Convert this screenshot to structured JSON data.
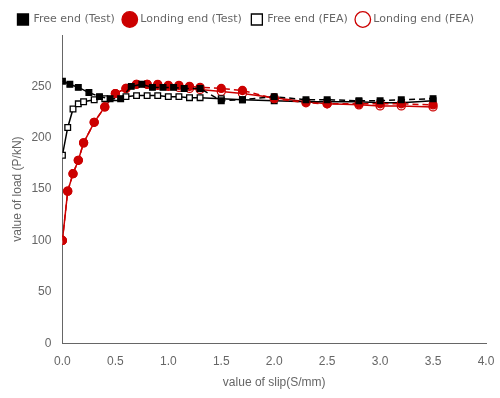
{
  "chart_data": {
    "type": "line",
    "xlabel": "value of slip(S/mm)",
    "ylabel": "value of load (P/kN)",
    "xlim": [
      0,
      4.0
    ],
    "ylim": [
      0,
      300
    ],
    "xticks": [
      {
        "value": 0.0,
        "label": "0.0"
      },
      0.5,
      {
        "value": 1.0,
        "label": "1.0"
      },
      1.5,
      {
        "value": 2.0,
        "label": "2.0"
      },
      2.5,
      {
        "value": 3.0,
        "label": "3.0"
      },
      3.5,
      {
        "value": 4.0,
        "label": "4.0"
      }
    ],
    "yticks": [
      0,
      50,
      100,
      150,
      200,
      250
    ],
    "grid": false,
    "legend": "top",
    "series": [
      {
        "name": "Free end (Test)",
        "color": "#000000",
        "marker": "square",
        "line_style": "dashed",
        "x": [
          0.0,
          0.07,
          0.15,
          0.25,
          0.35,
          0.45,
          0.55,
          0.65,
          0.75,
          0.85,
          0.95,
          1.05,
          1.15,
          1.3,
          1.5,
          1.7,
          2.0,
          2.3,
          2.5,
          2.8,
          3.0,
          3.2,
          3.5
        ],
        "values": [
          255,
          252,
          249,
          244,
          240,
          238,
          238,
          250,
          252,
          249,
          249,
          249,
          248,
          248,
          236,
          237,
          240,
          237,
          237,
          236,
          236,
          237,
          238
        ]
      },
      {
        "name": "Londing end (Test)",
        "color": "#cc0000",
        "marker": "circle",
        "line_style": "dashed",
        "x": [
          0.0,
          0.05,
          0.1,
          0.15,
          0.2,
          0.3,
          0.4,
          0.5,
          0.6,
          0.7,
          0.8,
          0.9,
          1.0,
          1.1,
          1.2,
          1.3,
          1.5,
          1.7,
          2.0,
          2.3,
          2.5,
          2.8,
          3.0,
          3.2,
          3.5
        ],
        "values": [
          100,
          148,
          165,
          178,
          195,
          215,
          230,
          243,
          248,
          252,
          252,
          252,
          251,
          251,
          250,
          249,
          248,
          246,
          238,
          234,
          233,
          233,
          233,
          233,
          232
        ]
      },
      {
        "name": "Free end (FEA)",
        "color": "#000000",
        "marker": "open_square",
        "line_style": "solid",
        "x": [
          0.0,
          0.05,
          0.1,
          0.15,
          0.2,
          0.3,
          0.4,
          0.5,
          0.6,
          0.7,
          0.8,
          0.9,
          1.0,
          1.1,
          1.2,
          1.3,
          1.5,
          1.7,
          2.0,
          2.3,
          2.5,
          2.8,
          3.0,
          3.2,
          3.5
        ],
        "values": [
          183,
          210,
          228,
          233,
          235,
          237,
          238,
          239,
          240,
          241,
          241,
          241,
          240,
          240,
          239,
          239,
          238,
          237,
          236,
          235,
          235,
          235,
          234,
          234,
          236
        ]
      },
      {
        "name": "Londing end (FEA)",
        "color": "#cc0000",
        "marker": "open_circle",
        "line_style": "solid",
        "x": [
          0.0,
          0.05,
          0.1,
          0.15,
          0.2,
          0.3,
          0.4,
          0.5,
          0.6,
          0.7,
          0.8,
          0.9,
          1.0,
          1.1,
          1.2,
          1.3,
          1.5,
          1.7,
          2.0,
          2.3,
          2.5,
          2.8,
          3.0,
          3.2,
          3.5
        ],
        "values": [
          100,
          148,
          165,
          178,
          195,
          215,
          230,
          243,
          248,
          252,
          252,
          251,
          250,
          249,
          248,
          247,
          245,
          243,
          239,
          235,
          233,
          232,
          231,
          231,
          230
        ]
      }
    ]
  }
}
